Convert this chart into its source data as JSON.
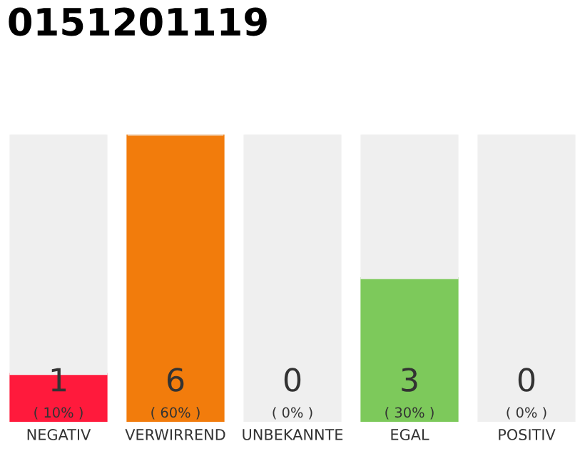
{
  "chart_data": {
    "type": "bar",
    "title": "0151201119",
    "categories": [
      "NEGATIV",
      "VERWIRREND",
      "UNBEKANNTE",
      "EGAL",
      "POSITIV"
    ],
    "stacked": true,
    "series": [
      {
        "colors": [
          "#ff1a3c",
          "#f27c0c",
          "#efefef",
          "#7dc95b",
          "#efefef"
        ],
        "values": [
          1,
          6,
          0,
          3,
          0
        ],
        "value_labels": [
          "1\n( 10% )",
          "6\n( 60% )",
          "0\n( 0% )",
          "3\n( 30% )",
          "0\n( 0% )"
        ]
      },
      {
        "color": "#efefef",
        "values": [
          5,
          0,
          6,
          3,
          6
        ]
      }
    ],
    "grid": false,
    "legend": false,
    "tick_labels": "x"
  }
}
